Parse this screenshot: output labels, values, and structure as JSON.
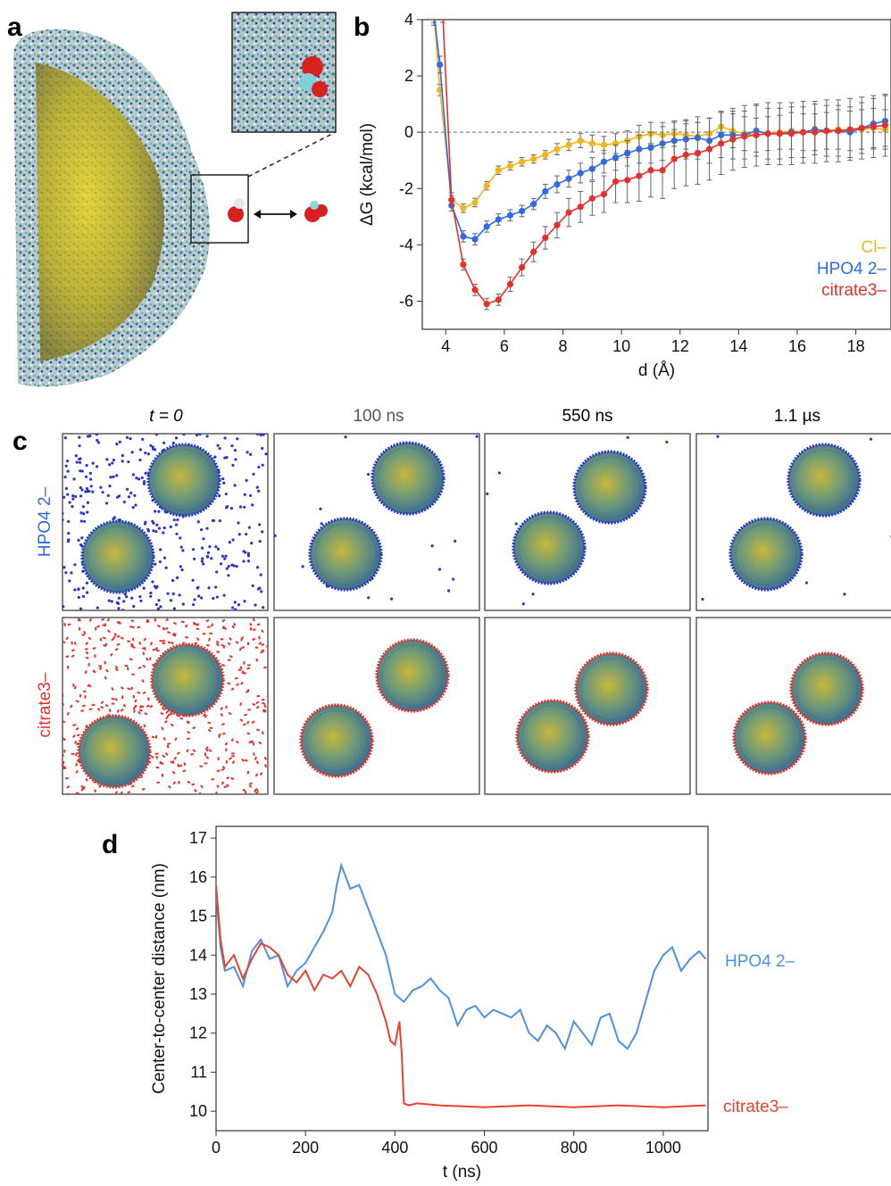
{
  "panels": {
    "a": {
      "letter": "a"
    },
    "b": {
      "letter": "b"
    },
    "c": {
      "letter": "c"
    },
    "d": {
      "letter": "d"
    }
  },
  "panel_c": {
    "time_labels": [
      "t = 0",
      "100 ns",
      "550 ns",
      "1.1 µs"
    ],
    "row_labels": [
      "HPO4 2–",
      "citrate3–"
    ],
    "colors": {
      "hpo4": "#2b35c8",
      "citrate": "#e5312a"
    }
  },
  "chart_data": [
    {
      "id": "b",
      "type": "line",
      "xlabel": "d (Å)",
      "ylabel": "ΔG (kcal/mol)",
      "xlim": [
        3.2,
        19.2
      ],
      "ylim": [
        -7,
        4
      ],
      "xticks": [
        4,
        6,
        8,
        10,
        12,
        14,
        16,
        18
      ],
      "yticks": [
        -6,
        -4,
        -2,
        0,
        2,
        4
      ],
      "reference_line": 0,
      "legend_placement": "bottom-right",
      "series": [
        {
          "name": "Cl–",
          "color": "#f2b51b",
          "x": [
            3.6,
            3.8,
            4.2,
            4.6,
            5.0,
            5.4,
            5.8,
            6.2,
            6.6,
            7.0,
            7.4,
            7.8,
            8.2,
            8.6,
            9.0,
            9.4,
            9.8,
            10.2,
            10.6,
            11.0,
            11.4,
            11.8,
            12.2,
            12.6,
            13.0,
            13.4,
            13.8,
            14.2,
            14.6,
            15.0,
            15.4,
            15.8,
            16.2,
            16.6,
            17.0,
            17.4,
            17.8,
            18.2,
            18.6,
            19.0
          ],
          "y": [
            4.2,
            1.5,
            -2.4,
            -2.7,
            -2.5,
            -1.9,
            -1.35,
            -1.2,
            -1.05,
            -0.95,
            -0.8,
            -0.6,
            -0.45,
            -0.3,
            -0.4,
            -0.45,
            -0.4,
            -0.3,
            -0.15,
            -0.05,
            -0.1,
            -0.05,
            -0.1,
            -0.15,
            -0.05,
            0.2,
            0.05,
            -0.05,
            -0.1,
            -0.05,
            0.0,
            0.05,
            0.0,
            0.0,
            0.05,
            0.1,
            0.05,
            0.1,
            0.15,
            0.1
          ],
          "err": [
            0.3,
            0.2,
            0.15,
            0.15,
            0.15,
            0.15,
            0.15,
            0.15,
            0.15,
            0.15,
            0.15,
            0.2,
            0.2,
            0.25,
            0.3,
            0.3,
            0.35,
            0.35,
            0.4,
            0.4,
            0.45,
            0.45,
            0.5,
            0.5,
            0.55,
            0.55,
            0.6,
            0.6,
            0.6,
            0.6,
            0.6,
            0.65,
            0.65,
            0.65,
            0.65,
            0.7,
            0.7,
            0.7,
            0.7,
            0.7
          ]
        },
        {
          "name": "HPO4 2–",
          "color": "#2f6be5",
          "x": [
            3.6,
            3.8,
            4.2,
            4.6,
            5.0,
            5.4,
            5.8,
            6.2,
            6.6,
            7.0,
            7.4,
            7.8,
            8.2,
            8.6,
            9.0,
            9.4,
            9.8,
            10.2,
            10.6,
            11.0,
            11.4,
            11.8,
            12.2,
            12.6,
            13.0,
            13.4,
            13.8,
            14.2,
            14.6,
            15.0,
            15.4,
            15.8,
            16.2,
            16.6,
            17.0,
            17.4,
            17.8,
            18.2,
            18.6,
            19.0
          ],
          "y": [
            4.2,
            2.4,
            -2.6,
            -3.7,
            -3.8,
            -3.35,
            -3.1,
            -2.95,
            -2.8,
            -2.55,
            -2.1,
            -1.85,
            -1.65,
            -1.45,
            -1.3,
            -1.05,
            -0.9,
            -0.75,
            -0.6,
            -0.55,
            -0.4,
            -0.3,
            -0.25,
            -0.2,
            -0.3,
            -0.1,
            -0.1,
            -0.1,
            0.05,
            -0.05,
            -0.05,
            0.0,
            0.0,
            0.1,
            0.05,
            0.05,
            0.0,
            0.15,
            0.3,
            0.4
          ],
          "err": [
            0.4,
            0.3,
            0.2,
            0.2,
            0.2,
            0.2,
            0.2,
            0.2,
            0.2,
            0.2,
            0.25,
            0.3,
            0.3,
            0.35,
            0.4,
            0.4,
            0.45,
            0.45,
            0.5,
            0.55,
            0.6,
            0.65,
            0.7,
            0.75,
            0.8,
            0.8,
            0.85,
            0.85,
            0.9,
            0.9,
            0.9,
            0.9,
            0.9,
            0.9,
            0.9,
            0.9,
            0.9,
            0.9,
            0.9,
            0.9
          ]
        },
        {
          "name": "citrate3–",
          "color": "#e5312a",
          "x": [
            3.9,
            4.2,
            4.6,
            5.0,
            5.4,
            5.8,
            6.2,
            6.6,
            7.0,
            7.4,
            7.8,
            8.2,
            8.6,
            9.0,
            9.4,
            9.8,
            10.2,
            10.6,
            11.0,
            11.4,
            11.8,
            12.2,
            12.6,
            13.0,
            13.4,
            13.8,
            14.2,
            14.6,
            15.0,
            15.4,
            15.8,
            16.2,
            16.6,
            17.0,
            17.4,
            17.8,
            18.2,
            18.6,
            19.0
          ],
          "y": [
            4.2,
            -2.4,
            -4.7,
            -5.6,
            -6.1,
            -5.95,
            -5.4,
            -4.8,
            -4.25,
            -3.75,
            -3.3,
            -2.85,
            -2.65,
            -2.35,
            -2.2,
            -1.75,
            -1.7,
            -1.55,
            -1.35,
            -1.35,
            -0.95,
            -0.8,
            -0.75,
            -0.6,
            -0.4,
            -0.25,
            -0.15,
            -0.1,
            -0.05,
            -0.05,
            -0.05,
            0.0,
            0.0,
            0.05,
            0.05,
            0.1,
            0.15,
            0.2,
            0.25
          ],
          "err": [
            0.3,
            0.25,
            0.2,
            0.2,
            0.2,
            0.2,
            0.25,
            0.3,
            0.35,
            0.4,
            0.45,
            0.5,
            0.55,
            0.6,
            0.65,
            0.75,
            0.8,
            0.9,
            0.95,
            1.0,
            1.05,
            1.1,
            1.1,
            1.1,
            1.1,
            1.1,
            1.1,
            1.1,
            1.1,
            1.1,
            1.1,
            1.1,
            1.1,
            1.1,
            1.1,
            1.1,
            1.1,
            1.1,
            1.1
          ]
        }
      ]
    },
    {
      "id": "d",
      "type": "line",
      "xlabel": "t (ns)",
      "ylabel": "Center-to-center distance (nm)",
      "xlim": [
        0,
        1100
      ],
      "ylim": [
        9.5,
        17.3
      ],
      "xticks": [
        0,
        200,
        400,
        600,
        800,
        1000
      ],
      "yticks": [
        10,
        11,
        12,
        13,
        14,
        15,
        16,
        17
      ],
      "series": [
        {
          "name": "HPO4 2–",
          "color": "#4f8fe6",
          "x": [
            0,
            10,
            20,
            40,
            60,
            80,
            100,
            120,
            140,
            160,
            180,
            200,
            220,
            240,
            260,
            270,
            280,
            300,
            320,
            340,
            360,
            380,
            400,
            420,
            440,
            460,
            480,
            500,
            520,
            540,
            560,
            580,
            600,
            620,
            640,
            660,
            680,
            700,
            720,
            740,
            760,
            780,
            800,
            820,
            840,
            860,
            880,
            900,
            920,
            940,
            960,
            980,
            1000,
            1020,
            1040,
            1060,
            1080,
            1095
          ],
          "y": [
            15.6,
            14.2,
            13.6,
            13.7,
            13.2,
            14.1,
            14.4,
            13.9,
            14.0,
            13.2,
            13.6,
            13.8,
            14.2,
            14.6,
            15.1,
            15.8,
            16.3,
            15.7,
            15.8,
            15.2,
            14.6,
            14.0,
            13.0,
            12.8,
            13.1,
            13.2,
            13.4,
            13.1,
            12.9,
            12.2,
            12.6,
            12.7,
            12.4,
            12.6,
            12.5,
            12.4,
            12.6,
            12.0,
            11.8,
            12.2,
            12.0,
            11.6,
            12.3,
            12.0,
            11.7,
            12.4,
            12.5,
            11.8,
            11.6,
            12.0,
            12.8,
            13.6,
            14.0,
            14.2,
            13.6,
            13.9,
            14.1,
            13.9
          ]
        },
        {
          "name": "citrate3–",
          "color": "#e8432e",
          "x": [
            0,
            10,
            20,
            40,
            60,
            80,
            100,
            120,
            140,
            160,
            180,
            200,
            220,
            240,
            260,
            280,
            300,
            320,
            340,
            360,
            380,
            390,
            400,
            410,
            415,
            420,
            430,
            450,
            500,
            600,
            700,
            800,
            900,
            1000,
            1095
          ],
          "y": [
            15.8,
            14.4,
            13.7,
            14.0,
            13.4,
            13.9,
            14.3,
            14.2,
            14.0,
            13.5,
            13.3,
            13.6,
            13.1,
            13.5,
            13.4,
            13.6,
            13.2,
            13.7,
            13.5,
            13.0,
            12.3,
            11.8,
            11.7,
            12.3,
            11.5,
            10.2,
            10.15,
            10.2,
            10.15,
            10.1,
            10.15,
            10.1,
            10.15,
            10.1,
            10.15
          ]
        }
      ]
    }
  ]
}
